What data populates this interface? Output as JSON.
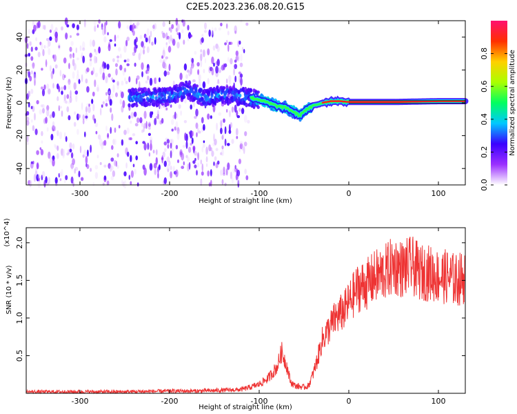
{
  "title": "C2E5.2023.236.08.20.G15",
  "chart_data": [
    {
      "type": "heatmap",
      "xlabel": "Height of straight line (km)",
      "ylabel": "Frequency (Hz)",
      "xlim": [
        -360,
        130
      ],
      "ylim": [
        -50,
        50
      ],
      "x_ticks": [
        -300,
        -200,
        -100,
        0,
        100
      ],
      "y_ticks": [
        -40,
        -20,
        0,
        20,
        40
      ],
      "colorbar": {
        "label": "Normalized spectral amplitude",
        "range": [
          0,
          1
        ],
        "ticks": [
          "0.0",
          "0.2",
          "0.4",
          "0.6",
          "0.8"
        ],
        "tick_values": [
          0,
          0.2,
          0.4,
          0.6,
          0.8
        ],
        "colormap": [
          "#ffffff",
          "#9b30ff",
          "#3a00ff",
          "#00c8ff",
          "#00ff60",
          "#aaff00",
          "#ffd000",
          "#ff3000",
          "#ff1070"
        ]
      },
      "ridge": {
        "x": [
          -240,
          -200,
          -180,
          -160,
          -140,
          -120,
          -100,
          -80,
          -70,
          -60,
          -55,
          -50,
          -40,
          -30,
          -20,
          -10,
          0,
          50,
          100,
          130
        ],
        "y": [
          3,
          4,
          8,
          3,
          5,
          4,
          2,
          -2,
          -3,
          -6,
          -8,
          -5,
          -2,
          0,
          1,
          1,
          0.5,
          0.5,
          1,
          1
        ]
      },
      "noise_extent_km": -120
    },
    {
      "type": "line",
      "xlabel": "Height of straight line (km)",
      "ylabel": "SNR (10 * v/v)",
      "y_scale_label": "(x10^4)",
      "xlim": [
        -360,
        130
      ],
      "ylim": [
        0,
        2.2
      ],
      "x_ticks": [
        -300,
        -200,
        -100,
        0,
        100
      ],
      "y_ticks": [
        "0.5",
        "1.0",
        "1.5",
        "2.0"
      ],
      "y_tick_values": [
        0.5,
        1.0,
        1.5,
        2.0
      ],
      "series": [
        {
          "color": "#ee3333",
          "x": [
            -360,
            -300,
            -250,
            -200,
            -170,
            -140,
            -120,
            -110,
            -100,
            -90,
            -80,
            -75,
            -70,
            -65,
            -60,
            -50,
            -45,
            -40,
            -35,
            -30,
            -25,
            -20,
            -15,
            -10,
            -5,
            0,
            10,
            20,
            30,
            40,
            50,
            60,
            70,
            80,
            90,
            100,
            110,
            120,
            130
          ],
          "y": [
            0.02,
            0.02,
            0.02,
            0.03,
            0.03,
            0.04,
            0.05,
            0.08,
            0.12,
            0.2,
            0.35,
            0.55,
            0.4,
            0.15,
            0.1,
            0.08,
            0.1,
            0.25,
            0.45,
            0.7,
            0.8,
            0.9,
            1.0,
            1.05,
            1.1,
            1.2,
            1.4,
            1.45,
            1.55,
            1.6,
            1.7,
            1.65,
            1.7,
            1.6,
            1.6,
            1.55,
            1.55,
            1.5,
            1.55
          ]
        }
      ]
    }
  ]
}
